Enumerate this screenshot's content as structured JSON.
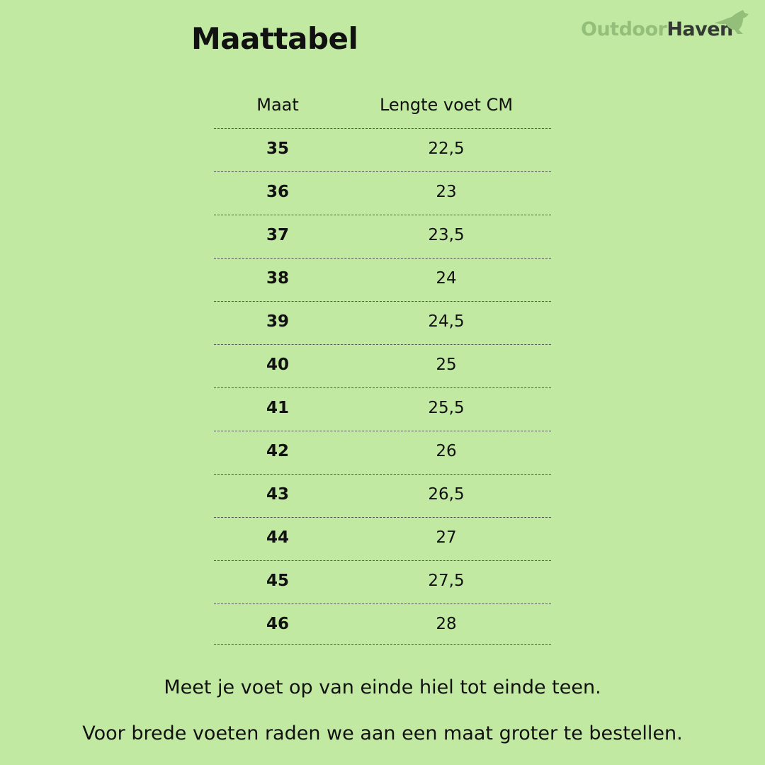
{
  "title": "Maattabel",
  "logo": {
    "part1": "Outdoor",
    "part2": "Haven",
    "icon": "kangaroo-icon",
    "colors": {
      "part1": "#93bf7a",
      "part2": "#333a33"
    }
  },
  "table": {
    "headers": [
      "Maat",
      "Lengte voet CM"
    ],
    "rows": [
      [
        "35",
        "22,5"
      ],
      [
        "36",
        "23"
      ],
      [
        "37",
        "23,5"
      ],
      [
        "38",
        "24"
      ],
      [
        "39",
        "24,5"
      ],
      [
        "40",
        "25"
      ],
      [
        "41",
        "25,5"
      ],
      [
        "42",
        "26"
      ],
      [
        "43",
        "26,5"
      ],
      [
        "44",
        "27"
      ],
      [
        "45",
        "27,5"
      ],
      [
        "46",
        "28"
      ]
    ]
  },
  "notes": [
    "Meet je voet op van einde hiel tot einde teen.",
    "Voor brede voeten raden we aan een maat groter te bestellen."
  ],
  "background": "#c1e9a1"
}
